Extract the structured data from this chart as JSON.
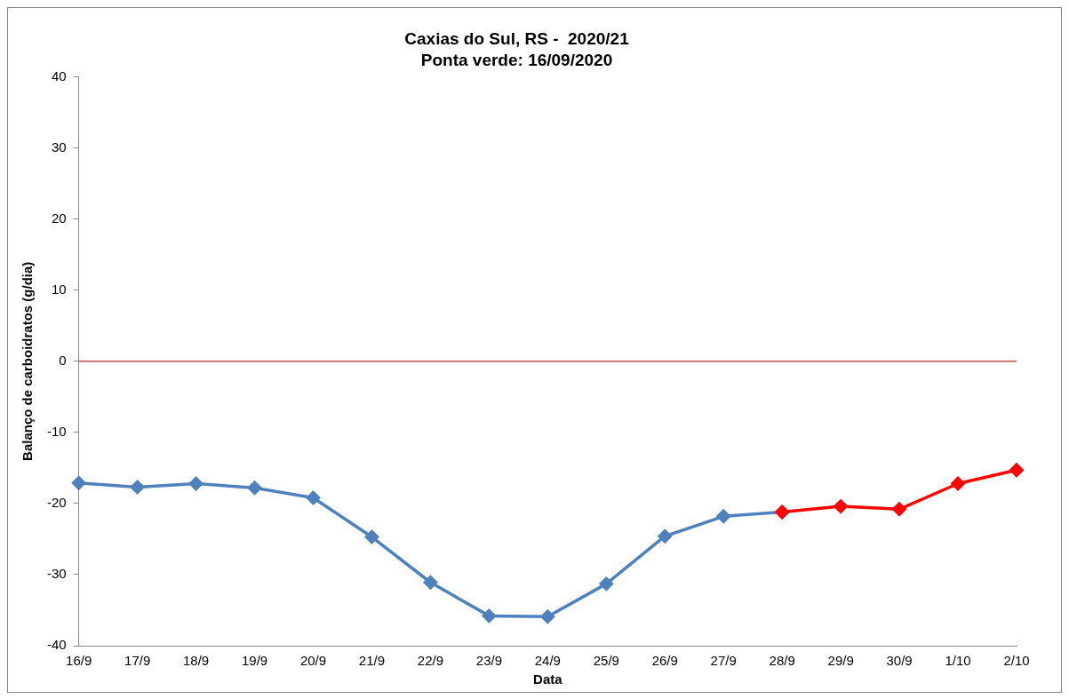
{
  "chart_data": {
    "type": "line",
    "title": "Caxias do Sul, RS -  2020/21",
    "subtitle": "Ponta verde: 16/09/2020",
    "xlabel": "Data",
    "ylabel": "Balanço de carboidratos (g/dia)",
    "categories": [
      "16/9",
      "17/9",
      "18/9",
      "19/9",
      "20/9",
      "21/9",
      "22/9",
      "23/9",
      "24/9",
      "25/9",
      "26/9",
      "27/9",
      "28/9",
      "29/9",
      "30/9",
      "1/10",
      "2/10"
    ],
    "series": [
      {
        "color": "#4f81bd",
        "values": [
          -17.1,
          -17.7,
          -17.2,
          -17.8,
          -19.2,
          -24.7,
          -31.1,
          -35.8,
          -35.9,
          -31.3,
          -24.6,
          -21.8,
          -21.2,
          null,
          null,
          null,
          null
        ]
      },
      {
        "color": "#ff0000",
        "values": [
          null,
          null,
          null,
          null,
          null,
          null,
          null,
          null,
          null,
          null,
          null,
          null,
          -21.2,
          -20.4,
          -20.8,
          -17.2,
          -15.3
        ]
      }
    ],
    "ylim": [
      -40,
      40
    ],
    "yticks": [
      -40,
      -30,
      -20,
      -10,
      0,
      10,
      20,
      30,
      40
    ],
    "ref_lines": [
      {
        "axis": "y",
        "value": 0,
        "color": "#c0504d"
      }
    ],
    "grid": false,
    "legend": false,
    "marker": "diamond",
    "line_style": "solid"
  }
}
